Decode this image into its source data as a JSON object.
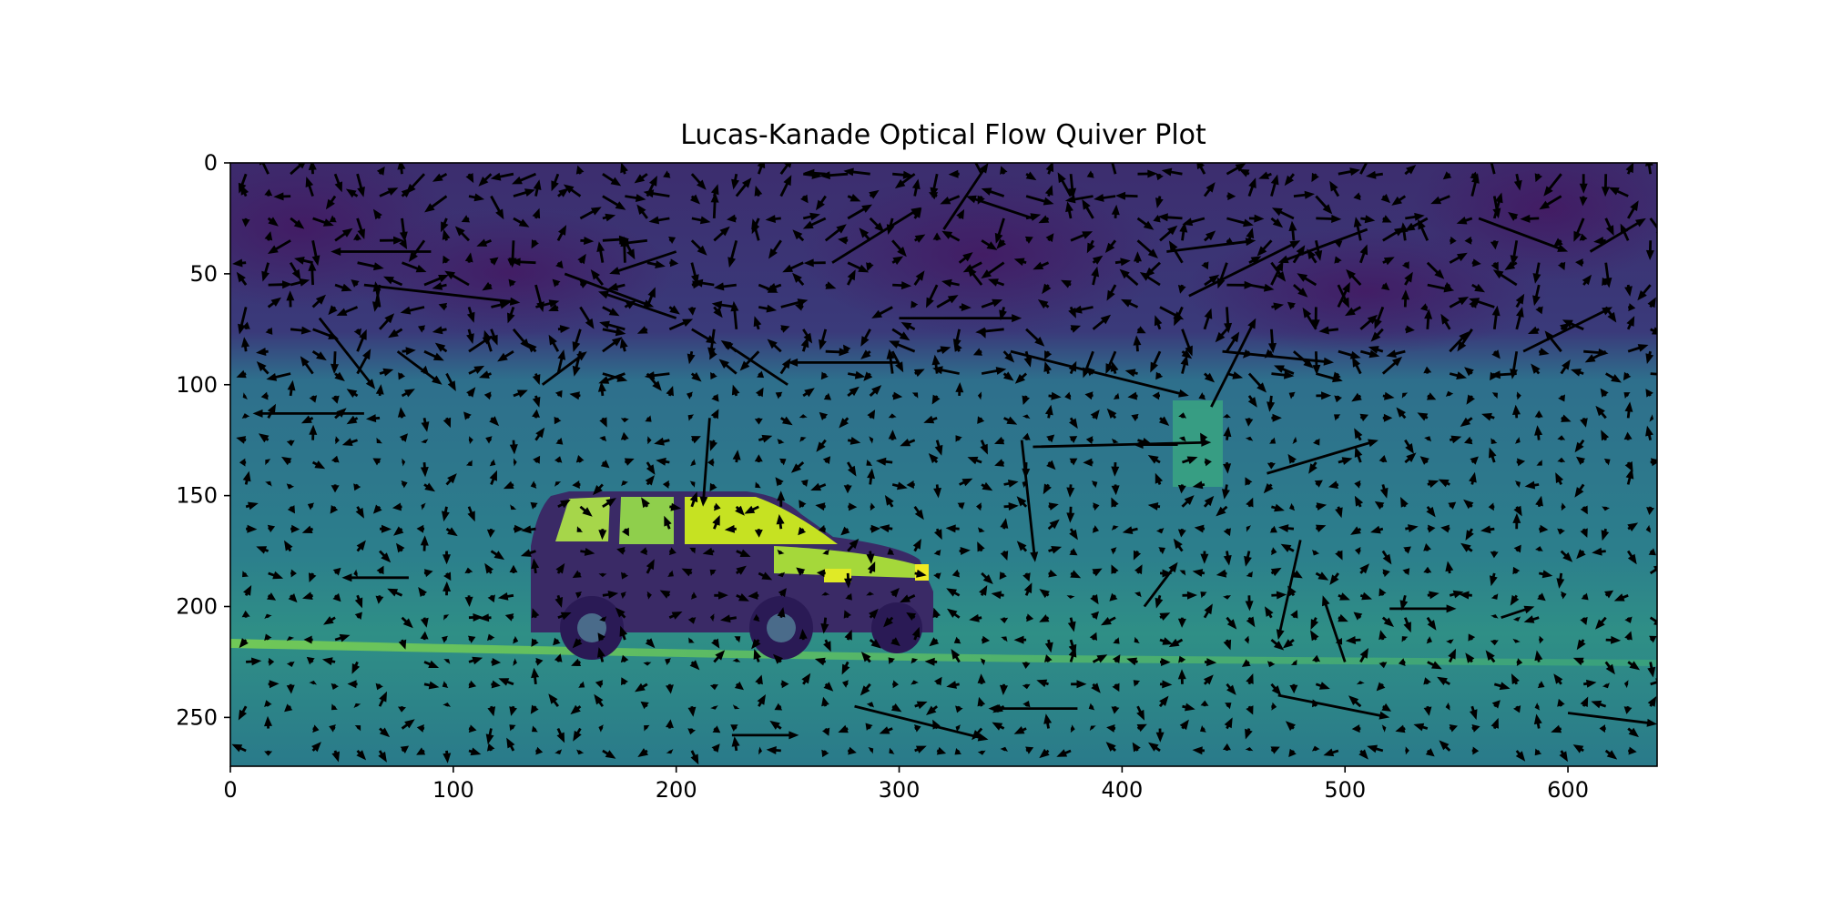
{
  "chart_data": {
    "type": "quiver",
    "title": "Lucas-Kanade Optical Flow Quiver Plot",
    "xlabel": "",
    "ylabel": "",
    "xlim": [
      0,
      640
    ],
    "ylim": [
      272,
      0
    ],
    "x_ticks": [
      0,
      100,
      200,
      300,
      400,
      500,
      600
    ],
    "y_ticks": [
      0,
      50,
      100,
      150,
      200,
      250
    ],
    "grid": false,
    "background": "grayscale video frame rendered with viridis colormap (car on road)",
    "colormap": {
      "dark": "#3e1f5c",
      "mid": "#2a7f8e",
      "light": "#c8e020"
    },
    "arrow_color": "#000000",
    "grid_step": 10,
    "vectors": [
      {
        "x": 40,
        "y": 70,
        "u": 25,
        "v": 32
      },
      {
        "x": 90,
        "y": 40,
        "u": -45,
        "v": 0
      },
      {
        "x": 150,
        "y": 50,
        "u": 40,
        "v": 15
      },
      {
        "x": 200,
        "y": 40,
        "u": -30,
        "v": 10
      },
      {
        "x": 270,
        "y": 45,
        "u": 40,
        "v": -25
      },
      {
        "x": 320,
        "y": 30,
        "u": 20,
        "v": -30
      },
      {
        "x": 360,
        "y": 25,
        "u": -30,
        "v": -10
      },
      {
        "x": 420,
        "y": 40,
        "u": 40,
        "v": -5
      },
      {
        "x": 430,
        "y": 60,
        "u": 50,
        "v": -25
      },
      {
        "x": 510,
        "y": 30,
        "u": -40,
        "v": 15
      },
      {
        "x": 560,
        "y": 25,
        "u": 40,
        "v": 15
      },
      {
        "x": 610,
        "y": 40,
        "u": 25,
        "v": -15
      },
      {
        "x": 60,
        "y": 55,
        "u": 70,
        "v": 8
      },
      {
        "x": 200,
        "y": 70,
        "u": -35,
        "v": -12
      },
      {
        "x": 300,
        "y": 70,
        "u": 55,
        "v": 0
      },
      {
        "x": 350,
        "y": 85,
        "u": 80,
        "v": 20
      },
      {
        "x": 445,
        "y": 85,
        "u": 50,
        "v": 5
      },
      {
        "x": 440,
        "y": 110,
        "u": 20,
        "v": -40
      },
      {
        "x": 580,
        "y": 85,
        "u": 40,
        "v": -20
      },
      {
        "x": 250,
        "y": 100,
        "u": -30,
        "v": -20
      },
      {
        "x": 75,
        "y": 85,
        "u": 20,
        "v": 15
      },
      {
        "x": 140,
        "y": 100,
        "u": 20,
        "v": -15
      },
      {
        "x": 300,
        "y": 90,
        "u": -50,
        "v": 0
      },
      {
        "x": 360,
        "y": 128,
        "u": 80,
        "v": -2
      },
      {
        "x": 355,
        "y": 125,
        "u": 6,
        "v": 55
      },
      {
        "x": 215,
        "y": 115,
        "u": -3,
        "v": 40
      },
      {
        "x": 60,
        "y": 113,
        "u": -50,
        "v": 0
      },
      {
        "x": 465,
        "y": 140,
        "u": 50,
        "v": -15
      },
      {
        "x": 425,
        "y": 127,
        "u": -20,
        "v": 0
      },
      {
        "x": 480,
        "y": 170,
        "u": -10,
        "v": 45
      },
      {
        "x": 410,
        "y": 200,
        "u": 15,
        "v": -20
      },
      {
        "x": 520,
        "y": 201,
        "u": 30,
        "v": 0
      },
      {
        "x": 570,
        "y": 205,
        "u": 15,
        "v": -5
      },
      {
        "x": 500,
        "y": 225,
        "u": -10,
        "v": -30
      },
      {
        "x": 280,
        "y": 245,
        "u": 60,
        "v": 15
      },
      {
        "x": 600,
        "y": 248,
        "u": 40,
        "v": 5
      },
      {
        "x": 380,
        "y": 246,
        "u": -40,
        "v": 0
      },
      {
        "x": 470,
        "y": 240,
        "u": 50,
        "v": 10
      },
      {
        "x": 80,
        "y": 187,
        "u": -30,
        "v": 0
      },
      {
        "x": 225,
        "y": 258,
        "u": 30,
        "v": 0
      }
    ]
  }
}
